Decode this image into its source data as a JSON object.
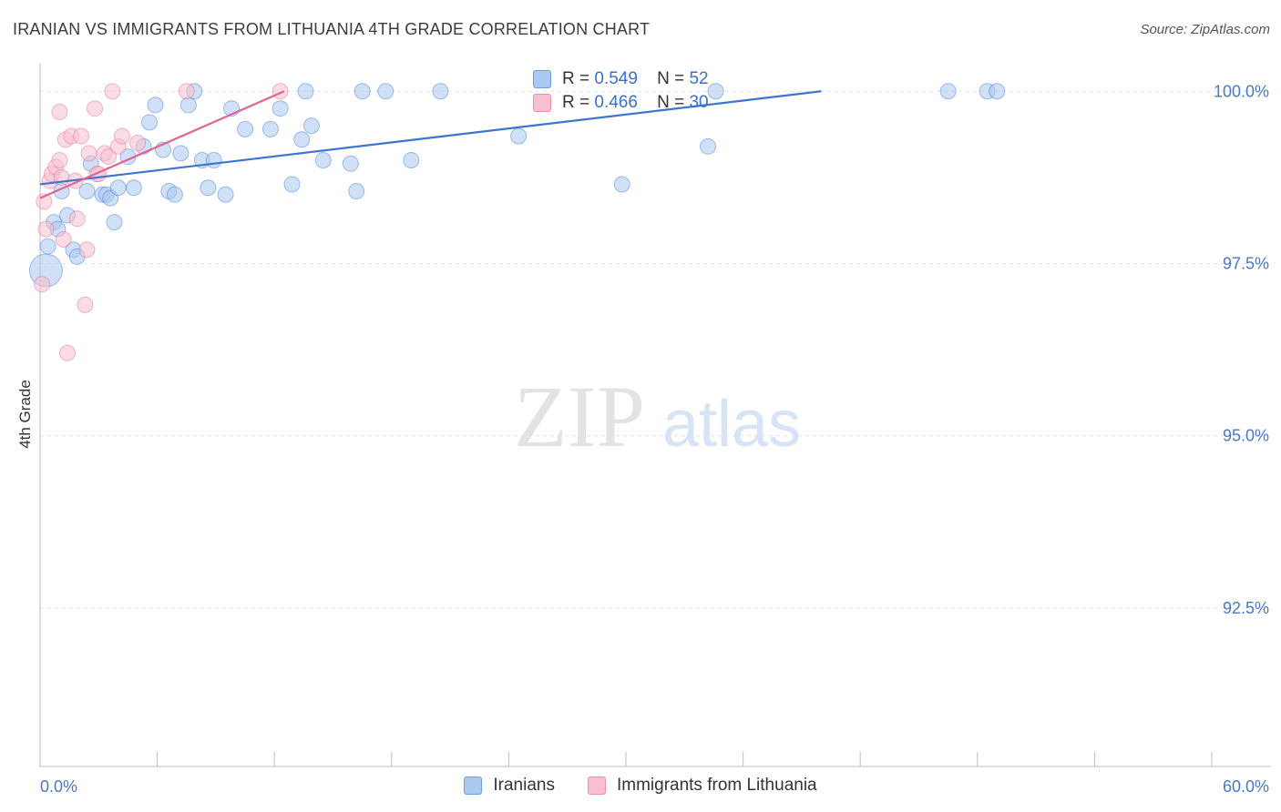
{
  "title": "IRANIAN VS IMMIGRANTS FROM LITHUANIA 4TH GRADE CORRELATION CHART",
  "source": "Source: ZipAtlas.com",
  "watermark": {
    "zip": "ZIP",
    "atlas": "atlas"
  },
  "legend": {
    "r_label": "R =",
    "n_label": "N =",
    "rows": [
      {
        "r": "0.549",
        "n": "52",
        "fill": "#aac8f0",
        "stroke": "#6f9fe0"
      },
      {
        "r": "0.466",
        "n": "30",
        "fill": "#f7bfd0",
        "stroke": "#ec8fb0"
      }
    ]
  },
  "bottom_legend": [
    {
      "label": "Iranians",
      "fill": "#aac8f0",
      "stroke": "#6f9fe0"
    },
    {
      "label": "Immigrants from Lithuania",
      "fill": "#f7bfd0",
      "stroke": "#ec8fb0"
    }
  ],
  "chart_data": {
    "type": "scatter",
    "title": "IRANIAN VS IMMIGRANTS FROM LITHUANIA 4TH GRADE CORRELATION CHART",
    "xlabel": "",
    "ylabel": "4th Grade",
    "xlim": [
      0,
      60
    ],
    "ylim": [
      90.2,
      100.4
    ],
    "x_tick_labels": [
      "0.0%",
      "60.0%"
    ],
    "y_ticks": [
      100.0,
      97.5,
      95.0,
      92.5
    ],
    "y_tick_labels": [
      "100.0%",
      "97.5%",
      "95.0%",
      "92.5%"
    ],
    "grid": true,
    "legend_position": "top-center",
    "series": [
      {
        "name": "Iranians",
        "color": "#3b74d1",
        "fill": "#aac8f0",
        "trend": {
          "x": [
            0.0,
            40.0
          ],
          "y": [
            98.65,
            100.0
          ]
        },
        "points": [
          [
            0.3,
            97.4
          ],
          [
            0.4,
            97.75
          ],
          [
            0.7,
            98.1
          ],
          [
            0.9,
            98.0
          ],
          [
            1.1,
            98.55
          ],
          [
            1.4,
            98.2
          ],
          [
            1.7,
            97.7
          ],
          [
            1.9,
            97.6
          ],
          [
            2.4,
            98.55
          ],
          [
            2.6,
            98.95
          ],
          [
            3.2,
            98.5
          ],
          [
            3.4,
            98.5
          ],
          [
            3.6,
            98.45
          ],
          [
            3.8,
            98.1
          ],
          [
            4.0,
            98.6
          ],
          [
            4.5,
            99.05
          ],
          [
            4.8,
            98.6
          ],
          [
            5.3,
            99.2
          ],
          [
            5.6,
            99.55
          ],
          [
            5.9,
            99.8
          ],
          [
            6.3,
            99.15
          ],
          [
            6.6,
            98.55
          ],
          [
            6.9,
            98.5
          ],
          [
            7.2,
            99.1
          ],
          [
            7.6,
            99.8
          ],
          [
            7.9,
            100.0
          ],
          [
            8.3,
            99.0
          ],
          [
            8.6,
            98.6
          ],
          [
            8.9,
            99.0
          ],
          [
            9.5,
            98.5
          ],
          [
            9.8,
            99.75
          ],
          [
            10.5,
            99.45
          ],
          [
            11.8,
            99.45
          ],
          [
            12.3,
            99.75
          ],
          [
            12.9,
            98.65
          ],
          [
            13.4,
            99.3
          ],
          [
            13.6,
            100.0
          ],
          [
            13.9,
            99.5
          ],
          [
            14.5,
            99.0
          ],
          [
            15.9,
            98.95
          ],
          [
            16.2,
            98.55
          ],
          [
            16.5,
            100.0
          ],
          [
            17.7,
            100.0
          ],
          [
            19.0,
            99.0
          ],
          [
            20.5,
            100.0
          ],
          [
            24.5,
            99.35
          ],
          [
            29.8,
            98.65
          ],
          [
            34.6,
            100.0
          ],
          [
            34.2,
            99.2
          ],
          [
            46.5,
            100.0
          ],
          [
            48.5,
            100.0
          ],
          [
            49.0,
            100.0
          ]
        ]
      },
      {
        "name": "Immigrants from Lithuania",
        "color": "#e06595",
        "fill": "#f7bfd0",
        "trend": {
          "x": [
            0.0,
            12.5
          ],
          "y": [
            98.45,
            100.0
          ]
        },
        "points": [
          [
            0.1,
            97.2
          ],
          [
            0.2,
            98.4
          ],
          [
            0.3,
            98.0
          ],
          [
            0.5,
            98.7
          ],
          [
            0.6,
            98.8
          ],
          [
            0.8,
            98.9
          ],
          [
            1.0,
            99.0
          ],
          [
            1.0,
            99.7
          ],
          [
            1.1,
            98.75
          ],
          [
            1.2,
            97.85
          ],
          [
            1.3,
            99.3
          ],
          [
            1.4,
            96.2
          ],
          [
            1.6,
            99.35
          ],
          [
            1.8,
            98.7
          ],
          [
            1.9,
            98.15
          ],
          [
            2.1,
            99.35
          ],
          [
            2.3,
            96.9
          ],
          [
            2.4,
            97.7
          ],
          [
            2.5,
            99.1
          ],
          [
            2.8,
            99.75
          ],
          [
            2.9,
            98.8
          ],
          [
            3.0,
            98.8
          ],
          [
            3.3,
            99.1
          ],
          [
            3.5,
            99.05
          ],
          [
            3.7,
            100.0
          ],
          [
            4.0,
            99.2
          ],
          [
            4.2,
            99.35
          ],
          [
            5.0,
            99.25
          ],
          [
            7.5,
            100.0
          ],
          [
            12.3,
            100.0
          ]
        ]
      }
    ]
  }
}
